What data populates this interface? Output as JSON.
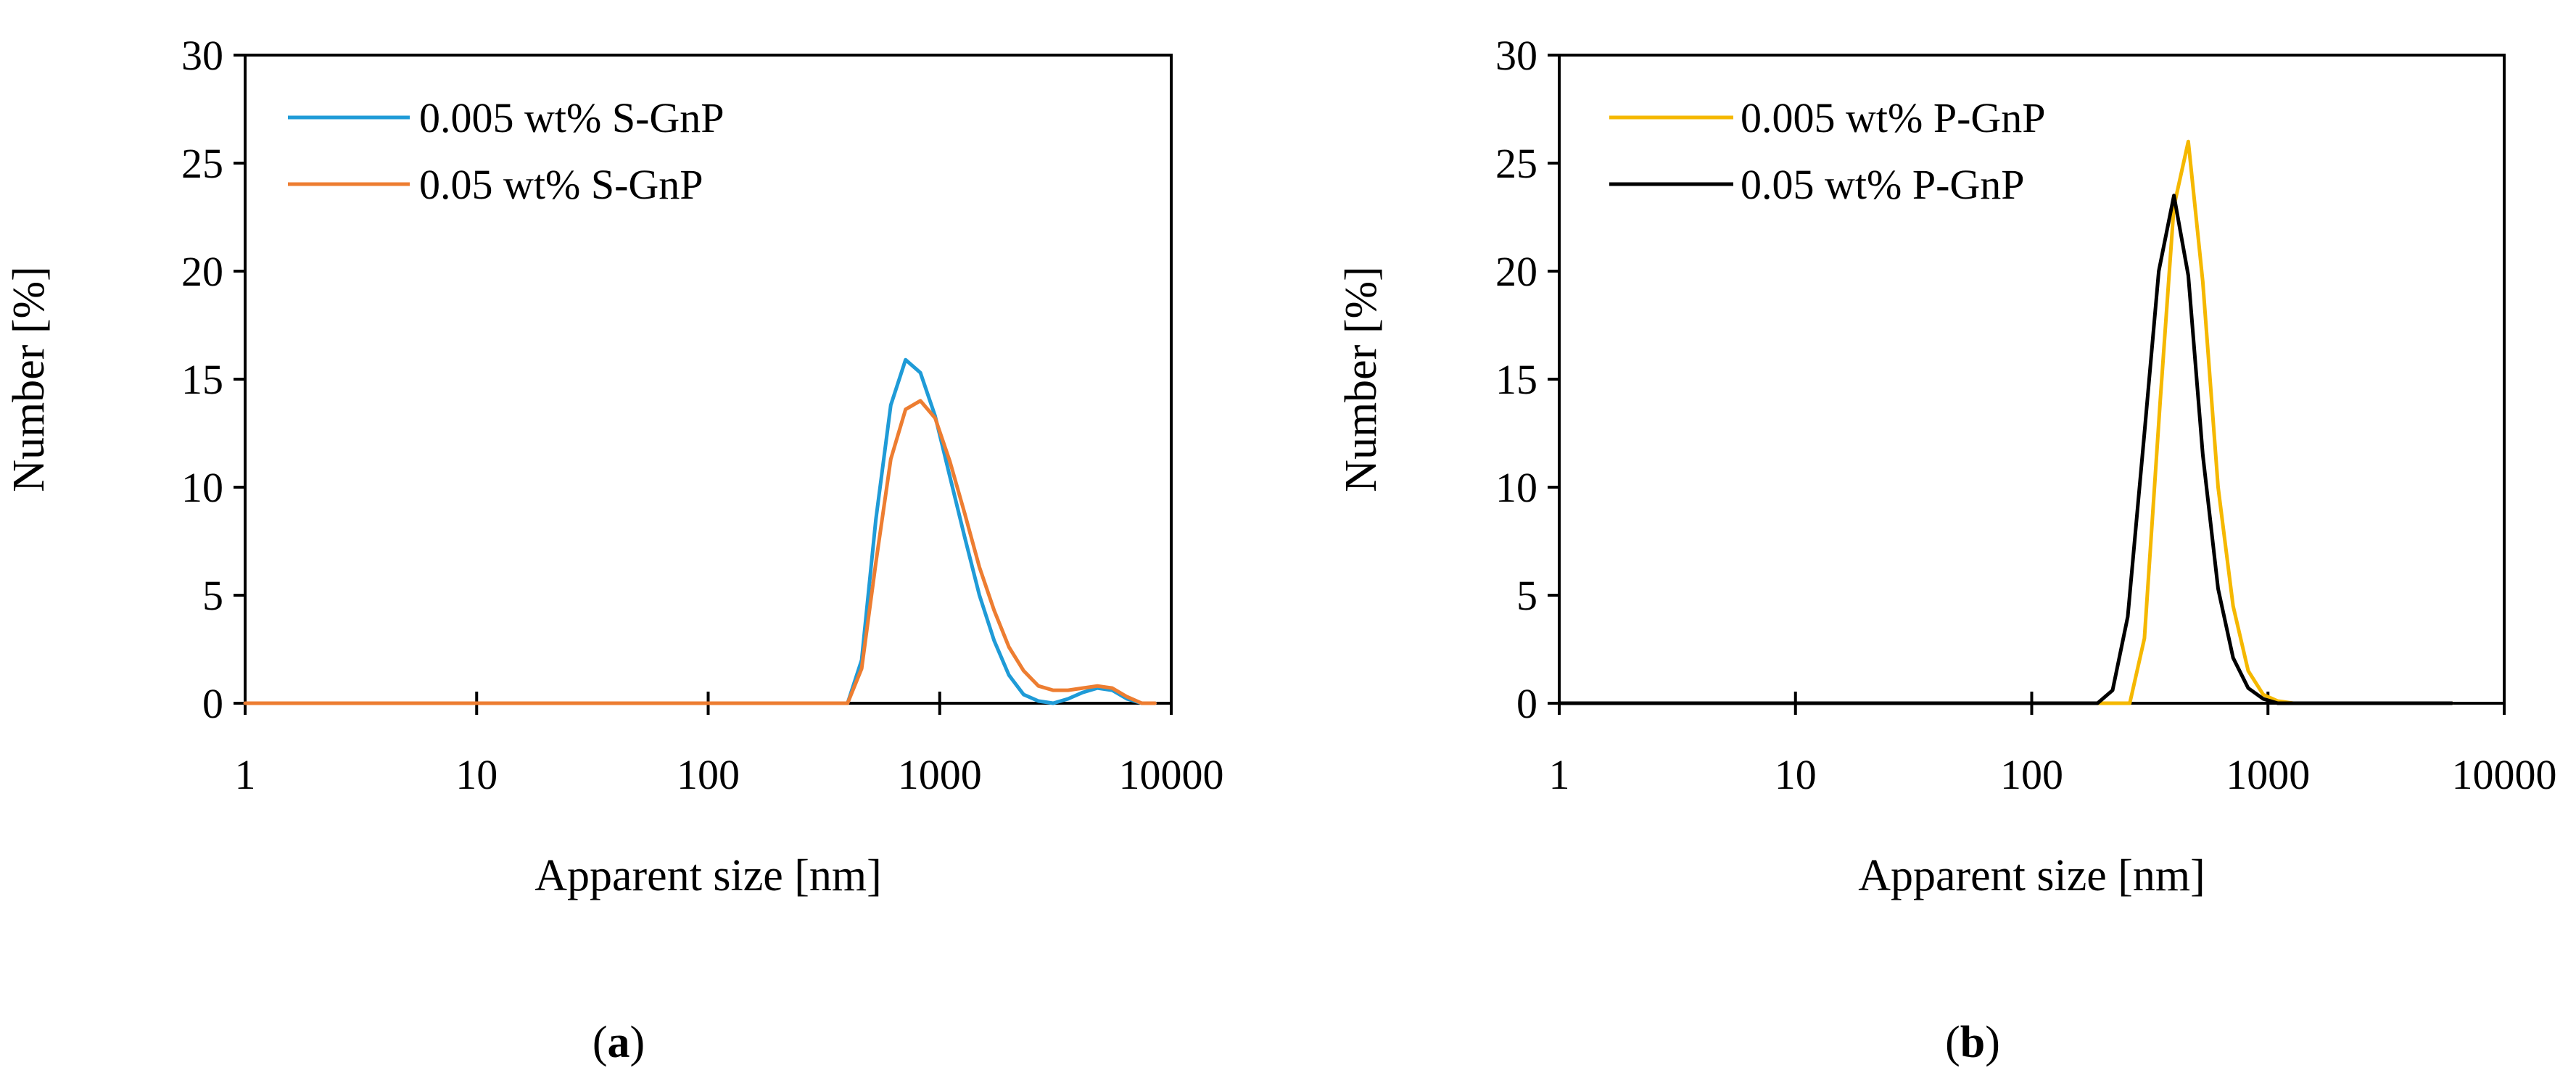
{
  "chart_data": [
    {
      "type": "line",
      "panel_label": "a",
      "xscale": "log",
      "xlabel": "Apparent size [nm]",
      "ylabel": "Number [%]",
      "xlim": [
        1,
        10000
      ],
      "ylim": [
        0,
        30
      ],
      "x_ticks": [
        "1",
        "10",
        "100",
        "1000",
        "10000"
      ],
      "y_ticks": [
        "0",
        "5",
        "10",
        "15",
        "20",
        "25",
        "30"
      ],
      "legend_position": "top-left",
      "series": [
        {
          "name": "0.005 wt% S-GnP",
          "color": "#1f9bd7",
          "points": [
            [
              1,
              0
            ],
            [
              400,
              0
            ],
            [
              460,
              2.0
            ],
            [
              530,
              8.5
            ],
            [
              615,
              13.8
            ],
            [
              712,
              15.9
            ],
            [
              825,
              15.3
            ],
            [
              955,
              13.3
            ],
            [
              1106,
              10.5
            ],
            [
              1281,
              7.7
            ],
            [
              1484,
              5.0
            ],
            [
              1718,
              2.9
            ],
            [
              1990,
              1.3
            ],
            [
              2305,
              0.4
            ],
            [
              2670,
              0.1
            ],
            [
              3090,
              0.0
            ],
            [
              3580,
              0.2
            ],
            [
              4150,
              0.5
            ],
            [
              4800,
              0.7
            ],
            [
              5560,
              0.6
            ],
            [
              6440,
              0.2
            ],
            [
              7460,
              0.0
            ],
            [
              8500,
              0.0
            ]
          ]
        },
        {
          "name": "0.05 wt% S-GnP",
          "color": "#ed7d31",
          "points": [
            [
              1,
              0
            ],
            [
              400,
              0
            ],
            [
              460,
              1.6
            ],
            [
              530,
              6.5
            ],
            [
              615,
              11.3
            ],
            [
              712,
              13.6
            ],
            [
              825,
              14.0
            ],
            [
              955,
              13.2
            ],
            [
              1106,
              11.2
            ],
            [
              1281,
              8.8
            ],
            [
              1484,
              6.3
            ],
            [
              1718,
              4.3
            ],
            [
              1990,
              2.6
            ],
            [
              2305,
              1.5
            ],
            [
              2670,
              0.8
            ],
            [
              3090,
              0.6
            ],
            [
              3580,
              0.6
            ],
            [
              4150,
              0.7
            ],
            [
              4800,
              0.8
            ],
            [
              5560,
              0.7
            ],
            [
              6440,
              0.3
            ],
            [
              7460,
              0.0
            ],
            [
              8500,
              0.0
            ]
          ]
        }
      ]
    },
    {
      "type": "line",
      "panel_label": "b",
      "xscale": "log",
      "xlabel": "Apparent size [nm]",
      "ylabel": "Number [%]",
      "xlim": [
        1,
        10000
      ],
      "ylim": [
        0,
        30
      ],
      "x_ticks": [
        "1",
        "10",
        "100",
        "1000",
        "10000"
      ],
      "y_ticks": [
        "0",
        "5",
        "10",
        "15",
        "20",
        "25",
        "30"
      ],
      "legend_position": "top-left",
      "series": [
        {
          "name": "0.005 wt% P-GnP",
          "color": "#f5b800",
          "points": [
            [
              1,
              0
            ],
            [
              260,
              0
            ],
            [
              300,
              3.0
            ],
            [
              350,
              14.0
            ],
            [
              400,
              23.0
            ],
            [
              460,
              26.0
            ],
            [
              530,
              19.5
            ],
            [
              615,
              10.0
            ],
            [
              712,
              4.5
            ],
            [
              825,
              1.5
            ],
            [
              955,
              0.4
            ],
            [
              1100,
              0.1
            ],
            [
              1280,
              0
            ],
            [
              6000,
              0
            ]
          ]
        },
        {
          "name": "0.05 wt% P-GnP",
          "color": "#000000",
          "points": [
            [
              1,
              0
            ],
            [
              190,
              0
            ],
            [
              220,
              0.6
            ],
            [
              255,
              4.0
            ],
            [
              300,
              12.5
            ],
            [
              345,
              20.0
            ],
            [
              400,
              23.5
            ],
            [
              460,
              19.8
            ],
            [
              530,
              11.5
            ],
            [
              615,
              5.3
            ],
            [
              712,
              2.1
            ],
            [
              825,
              0.7
            ],
            [
              955,
              0.2
            ],
            [
              1100,
              0
            ],
            [
              1280,
              0
            ],
            [
              6000,
              0
            ]
          ]
        }
      ]
    }
  ]
}
